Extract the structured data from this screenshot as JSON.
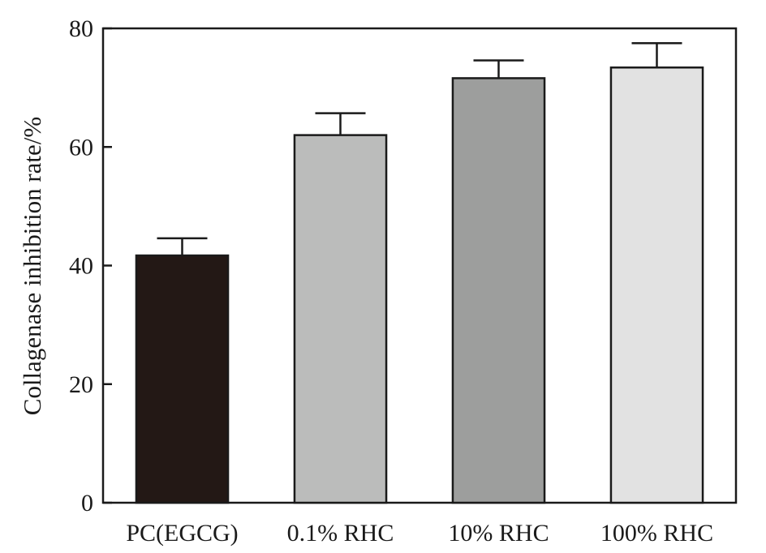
{
  "chart_data": {
    "type": "bar",
    "title": "",
    "xlabel": "",
    "ylabel": "Collagenase inhibition rate/%",
    "categories": [
      "PC(EGCG)",
      "0.1% RHC",
      "10% RHC",
      "100% RHC"
    ],
    "values": [
      41.7,
      62.0,
      71.6,
      73.4
    ],
    "error": [
      2.9,
      3.7,
      3.0,
      4.1
    ],
    "ylim": [
      0,
      80
    ],
    "yticks": [
      0,
      20,
      40,
      60,
      80
    ],
    "ytick_labels": [
      "0",
      "20",
      "40",
      "60",
      "80"
    ],
    "bar_colors": [
      "#231815",
      "#bbbcbb",
      "#9d9e9d",
      "#e2e2e2"
    ],
    "grid": false,
    "legend": "none"
  }
}
